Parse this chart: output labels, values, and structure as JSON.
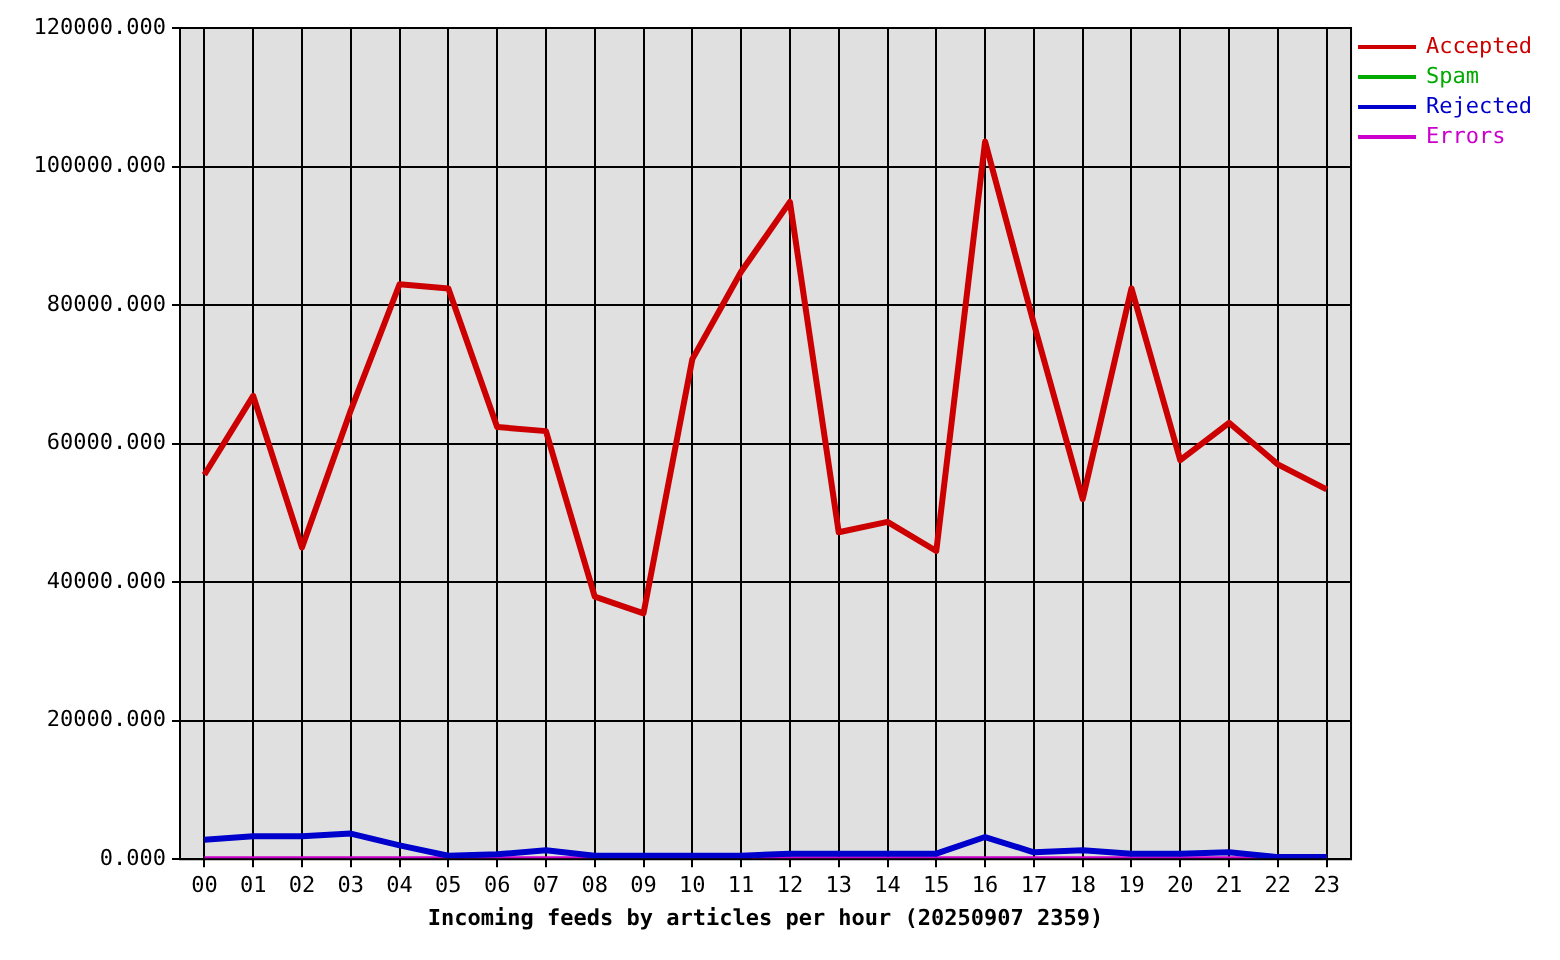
{
  "chart_data": {
    "type": "line",
    "xlabel": "Incoming feeds by articles per hour (20250907 2359)",
    "categories": [
      "00",
      "01",
      "02",
      "03",
      "04",
      "05",
      "06",
      "07",
      "08",
      "09",
      "10",
      "11",
      "12",
      "13",
      "14",
      "15",
      "16",
      "17",
      "18",
      "19",
      "20",
      "21",
      "22",
      "23"
    ],
    "series": [
      {
        "name": "Accepted",
        "color": "#cc0000",
        "values": [
          55500,
          66900,
          45000,
          64800,
          83000,
          82400,
          62400,
          61800,
          37900,
          35500,
          72200,
          84800,
          94900,
          47200,
          48700,
          44500,
          103600,
          77300,
          52000,
          82400,
          57600,
          63000,
          57000,
          53400
        ]
      },
      {
        "name": "Spam",
        "color": "#00aa00",
        "values": [
          null,
          null,
          null,
          null,
          null,
          null,
          null,
          null,
          null,
          null,
          null,
          null,
          null,
          null,
          null,
          null,
          null,
          null,
          null,
          null,
          null,
          null,
          null,
          null
        ]
      },
      {
        "name": "Rejected",
        "color": "#0000cc",
        "values": [
          2800,
          3300,
          3300,
          3700,
          2000,
          500,
          700,
          1300,
          500,
          500,
          500,
          500,
          800,
          800,
          800,
          800,
          3200,
          1000,
          1300,
          800,
          800,
          1000,
          300,
          300
        ]
      },
      {
        "name": "Errors",
        "color": "#cc00cc",
        "values": [
          0,
          0,
          0,
          0,
          0,
          0,
          0,
          0,
          0,
          0,
          0,
          0,
          0,
          0,
          0,
          0,
          0,
          0,
          0,
          0,
          0,
          0,
          0,
          0
        ]
      }
    ],
    "ylim": [
      0,
      120000
    ],
    "yticks": [
      {
        "value": 0,
        "label": "0.000"
      },
      {
        "value": 20000,
        "label": "20000.000"
      },
      {
        "value": 40000,
        "label": "40000.000"
      },
      {
        "value": 60000,
        "label": "60000.000"
      },
      {
        "value": 80000,
        "label": "80000.000"
      },
      {
        "value": 100000,
        "label": "100000.000"
      },
      {
        "value": 120000,
        "label": "120000.000"
      }
    ],
    "grid": true,
    "legend": "top right",
    "marker": "none",
    "line_style": "solid"
  }
}
